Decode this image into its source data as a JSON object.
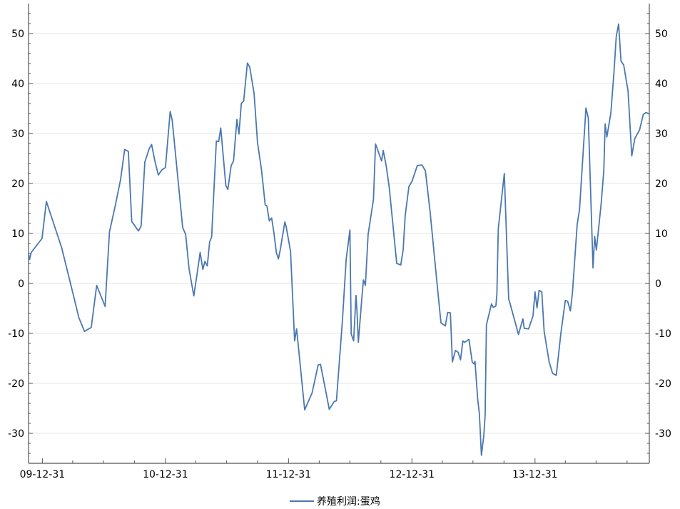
{
  "chart_data": {
    "type": "line",
    "title": "",
    "xlabel": "",
    "ylabel": "",
    "ylim": [
      -36,
      56
    ],
    "yticks": [
      -30,
      -20,
      -10,
      0,
      10,
      20,
      30,
      40,
      50
    ],
    "x_tick_labels": [
      "09-12-31",
      "10-12-31",
      "11-12-31",
      "12-12-31",
      "13-12-31"
    ],
    "x_range": [
      "09-11-20",
      "14-12-05"
    ],
    "grid": "horizontal",
    "legend_position": "bottom-center",
    "series": [
      {
        "name": "养殖利润:蛋鸡",
        "color": "#4a78b0",
        "points": [
          [
            "09-11-20",
            6.0
          ],
          [
            "09-11-23",
            4.8
          ],
          [
            "09-11-28",
            6.2
          ],
          [
            "09-12-30",
            9.0
          ],
          [
            "10-01-12",
            16.4
          ],
          [
            "10-02-26",
            7.2
          ],
          [
            "10-03-31",
            -1.8
          ],
          [
            "10-04-18",
            -6.8
          ],
          [
            "10-05-05",
            -9.6
          ],
          [
            "10-05-25",
            -8.8
          ],
          [
            "10-06-10",
            -0.4
          ],
          [
            "10-07-05",
            -4.6
          ],
          [
            "10-07-18",
            10.3
          ],
          [
            "10-08-05",
            15.8
          ],
          [
            "10-08-20",
            20.8
          ],
          [
            "10-09-01",
            26.8
          ],
          [
            "10-09-12",
            26.4
          ],
          [
            "10-09-22",
            12.4
          ],
          [
            "10-10-12",
            10.5
          ],
          [
            "10-10-20",
            11.5
          ],
          [
            "10-10-31",
            24.3
          ],
          [
            "10-11-13",
            27.0
          ],
          [
            "10-11-20",
            27.8
          ],
          [
            "10-11-30",
            24.4
          ],
          [
            "10-12-10",
            21.7
          ],
          [
            "10-12-20",
            22.7
          ],
          [
            "10-12-31",
            23.2
          ],
          [
            "11-01-14",
            34.4
          ],
          [
            "11-01-20",
            32.7
          ],
          [
            "11-02-20",
            11.2
          ],
          [
            "11-03-01",
            9.8
          ],
          [
            "11-03-11",
            3.0
          ],
          [
            "11-03-25",
            -2.5
          ],
          [
            "11-04-04",
            2.0
          ],
          [
            "11-04-13",
            6.2
          ],
          [
            "11-04-21",
            2.8
          ],
          [
            "11-04-27",
            4.4
          ],
          [
            "11-05-04",
            3.5
          ],
          [
            "11-05-11",
            8.3
          ],
          [
            "11-05-17",
            9.3
          ],
          [
            "11-05-31",
            28.5
          ],
          [
            "11-06-07",
            28.4
          ],
          [
            "11-06-13",
            31.1
          ],
          [
            "11-06-28",
            19.6
          ],
          [
            "11-07-04",
            18.8
          ],
          [
            "11-07-14",
            23.6
          ],
          [
            "11-07-21",
            24.5
          ],
          [
            "11-07-31",
            32.8
          ],
          [
            "11-08-06",
            29.9
          ],
          [
            "11-08-13",
            36.0
          ],
          [
            "11-08-20",
            36.5
          ],
          [
            "11-08-31",
            44.1
          ],
          [
            "11-09-07",
            43.3
          ],
          [
            "11-09-20",
            38.0
          ],
          [
            "11-09-30",
            28.2
          ],
          [
            "11-10-12",
            22.7
          ],
          [
            "11-10-23",
            15.7
          ],
          [
            "11-10-28",
            15.5
          ],
          [
            "11-11-04",
            12.5
          ],
          [
            "11-11-11",
            13.1
          ],
          [
            "11-11-18",
            10.0
          ],
          [
            "11-11-25",
            6.2
          ],
          [
            "11-12-01",
            4.9
          ],
          [
            "11-12-07",
            6.9
          ],
          [
            "11-12-20",
            12.3
          ],
          [
            "11-12-24",
            11.4
          ],
          [
            "12-01-06",
            6.4
          ],
          [
            "12-01-18",
            -11.5
          ],
          [
            "12-01-24",
            -9.1
          ],
          [
            "12-02-17",
            -25.3
          ],
          [
            "12-03-10",
            -21.9
          ],
          [
            "12-03-28",
            -16.3
          ],
          [
            "12-04-04",
            -16.2
          ],
          [
            "12-04-30",
            -25.2
          ],
          [
            "12-05-15",
            -23.6
          ],
          [
            "12-05-21",
            -23.5
          ],
          [
            "12-06-08",
            -7.2
          ],
          [
            "12-06-19",
            4.9
          ],
          [
            "12-06-30",
            10.7
          ],
          [
            "12-07-04",
            -10.1
          ],
          [
            "12-07-11",
            -11.5
          ],
          [
            "12-07-18",
            -2.4
          ],
          [
            "12-07-21",
            -5.5
          ],
          [
            "12-07-25",
            -11.8
          ],
          [
            "12-08-03",
            -4.2
          ],
          [
            "12-08-09",
            0.7
          ],
          [
            "12-08-15",
            -0.4
          ],
          [
            "12-08-23",
            9.8
          ],
          [
            "12-09-08",
            16.8
          ],
          [
            "12-09-14",
            27.9
          ],
          [
            "12-10-02",
            24.5
          ],
          [
            "12-10-07",
            26.6
          ],
          [
            "12-10-16",
            23.4
          ],
          [
            "12-10-25",
            19.1
          ],
          [
            "12-11-16",
            4.0
          ],
          [
            "12-11-28",
            3.7
          ],
          [
            "12-12-05",
            6.7
          ],
          [
            "12-12-11",
            13.6
          ],
          [
            "12-12-22",
            19.4
          ],
          [
            "12-12-31",
            20.4
          ],
          [
            "13-01-16",
            23.6
          ],
          [
            "13-01-30",
            23.7
          ],
          [
            "13-02-09",
            22.5
          ],
          [
            "13-02-23",
            14.3
          ],
          [
            "13-03-14",
            1.0
          ],
          [
            "13-03-27",
            -7.9
          ],
          [
            "13-04-09",
            -8.5
          ],
          [
            "13-04-16",
            -5.8
          ],
          [
            "13-04-24",
            -5.9
          ],
          [
            "13-04-30",
            -15.7
          ],
          [
            "13-05-09",
            -13.4
          ],
          [
            "13-05-17",
            -13.8
          ],
          [
            "13-05-24",
            -15.3
          ],
          [
            "13-05-31",
            -11.5
          ],
          [
            "13-06-05",
            -11.8
          ],
          [
            "13-06-18",
            -11.2
          ],
          [
            "13-06-28",
            -15.8
          ],
          [
            "13-07-03",
            -16.1
          ],
          [
            "13-07-06",
            -15.6
          ],
          [
            "13-07-14",
            -23.2
          ],
          [
            "13-07-19",
            -26.0
          ],
          [
            "13-07-25",
            -34.4
          ],
          [
            "13-08-01",
            -30.5
          ],
          [
            "13-08-05",
            -26.4
          ],
          [
            "13-08-09",
            -8.3
          ],
          [
            "13-08-24",
            -4.1
          ],
          [
            "13-08-29",
            -4.8
          ],
          [
            "13-09-06",
            -4.5
          ],
          [
            "13-09-09",
            -2.1
          ],
          [
            "13-09-13",
            10.9
          ],
          [
            "13-10-01",
            22.0
          ],
          [
            "13-10-14",
            -3.1
          ],
          [
            "13-10-18",
            -4.0
          ],
          [
            "13-11-12",
            -10.2
          ],
          [
            "13-11-25",
            -7.1
          ],
          [
            "13-11-29",
            -9.0
          ],
          [
            "13-12-12",
            -9.1
          ],
          [
            "13-12-25",
            -6.5
          ],
          [
            "13-12-31",
            -1.7
          ],
          [
            "14-01-06",
            -4.9
          ],
          [
            "14-01-12",
            -1.4
          ],
          [
            "14-01-20",
            -1.7
          ],
          [
            "14-01-27",
            -9.6
          ],
          [
            "14-02-11",
            -15.7
          ],
          [
            "14-02-21",
            -18.0
          ],
          [
            "14-03-04",
            -18.4
          ],
          [
            "14-03-18",
            -9.8
          ],
          [
            "14-03-31",
            -3.4
          ],
          [
            "14-04-07",
            -3.6
          ],
          [
            "14-04-15",
            -5.5
          ],
          [
            "14-04-21",
            -1.8
          ],
          [
            "14-05-05",
            11.8
          ],
          [
            "14-05-12",
            14.8
          ],
          [
            "14-05-31",
            35.1
          ],
          [
            "14-06-07",
            33.1
          ],
          [
            "14-06-21",
            3.1
          ],
          [
            "14-06-26",
            9.4
          ],
          [
            "14-07-01",
            6.7
          ],
          [
            "14-07-15",
            15.8
          ],
          [
            "14-07-23",
            22.5
          ],
          [
            "14-07-27",
            31.9
          ],
          [
            "14-08-01",
            29.3
          ],
          [
            "14-08-13",
            34.1
          ],
          [
            "14-08-22",
            42.1
          ],
          [
            "14-08-29",
            49.5
          ],
          [
            "14-09-05",
            51.9
          ],
          [
            "14-09-12",
            44.5
          ],
          [
            "14-09-20",
            43.7
          ],
          [
            "14-10-03",
            38.5
          ],
          [
            "14-10-14",
            25.5
          ],
          [
            "14-10-23",
            29.0
          ],
          [
            "14-11-06",
            30.7
          ],
          [
            "14-11-17",
            33.8
          ],
          [
            "14-11-25",
            34.2
          ],
          [
            "14-12-05",
            33.9
          ]
        ]
      }
    ]
  }
}
